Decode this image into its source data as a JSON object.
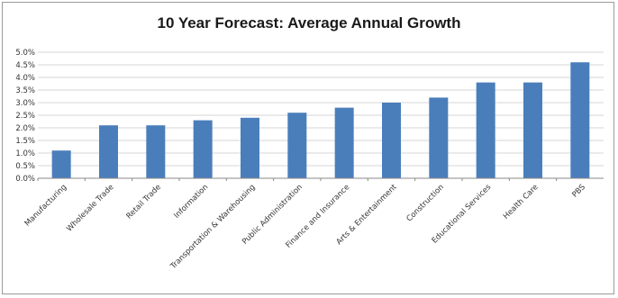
{
  "chart_data": {
    "type": "bar",
    "title": "10 Year Forecast: Average Annual Growth",
    "xlabel": "",
    "ylabel": "",
    "ylim": [
      0,
      5.0
    ],
    "yticks": [
      "0.0%",
      "0.5%",
      "1.0%",
      "1.5%",
      "2.0%",
      "2.5%",
      "3.0%",
      "3.5%",
      "4.0%",
      "4.5%",
      "5.0%"
    ],
    "categories": [
      "Manufacturing",
      "Wholesale Trade",
      "Retail Trade",
      "Information",
      "Transportation & Warehousing",
      "Public Administration",
      "Finance and Insurance",
      "Arts & Entertainment",
      "Construction",
      "Educational Services",
      "Health Care",
      "PBS"
    ],
    "values": [
      1.1,
      2.1,
      2.1,
      2.3,
      2.4,
      2.6,
      2.8,
      3.0,
      3.2,
      3.8,
      3.8,
      4.6
    ],
    "bar_color": "#4a7ebb",
    "grid": true,
    "legend": "none"
  }
}
